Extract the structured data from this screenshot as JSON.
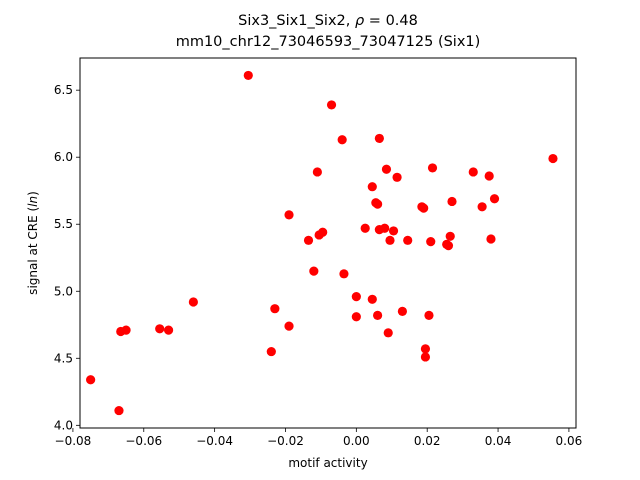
{
  "chart_data": {
    "type": "scatter",
    "title_prefix": "Six3_Six1_Six2, ",
    "title_rho_symbol": "ρ",
    "title_rho_value": " = 0.48",
    "subtitle": "mm10_chr12_73046593_73047125 (Six1)",
    "xlabel": "motif activity",
    "ylabel_prefix": "signal at CRE (",
    "ylabel_italic": "ln",
    "ylabel_suffix": ")",
    "xlim": [
      -0.078,
      0.062
    ],
    "ylim": [
      3.98,
      6.74
    ],
    "xticks": [
      -0.08,
      -0.06,
      -0.04,
      -0.02,
      0.0,
      0.02,
      0.04,
      0.06
    ],
    "xtick_labels": [
      "−0.08",
      "−0.06",
      "−0.04",
      "−0.02",
      "0.00",
      "0.02",
      "0.04",
      "0.06"
    ],
    "yticks": [
      4.0,
      4.5,
      5.0,
      5.5,
      6.0,
      6.5
    ],
    "ytick_labels": [
      "4.0",
      "4.5",
      "5.0",
      "5.5",
      "6.0",
      "6.5"
    ],
    "grid": false,
    "marker_color": "#ff0000",
    "points": [
      [
        -0.075,
        4.34
      ],
      [
        -0.067,
        4.11
      ],
      [
        -0.0665,
        4.7
      ],
      [
        -0.065,
        4.71
      ],
      [
        -0.0555,
        4.72
      ],
      [
        -0.053,
        4.71
      ],
      [
        -0.046,
        4.92
      ],
      [
        -0.0305,
        6.61
      ],
      [
        -0.024,
        4.55
      ],
      [
        -0.023,
        4.87
      ],
      [
        -0.019,
        4.74
      ],
      [
        -0.019,
        5.57
      ],
      [
        -0.0135,
        5.38
      ],
      [
        -0.012,
        5.15
      ],
      [
        -0.011,
        5.89
      ],
      [
        -0.0105,
        5.42
      ],
      [
        -0.0095,
        5.44
      ],
      [
        -0.007,
        6.39
      ],
      [
        -0.004,
        6.13
      ],
      [
        -0.0035,
        5.13
      ],
      [
        0.0,
        4.96
      ],
      [
        0.0,
        4.81
      ],
      [
        0.0025,
        5.47
      ],
      [
        0.0045,
        5.78
      ],
      [
        0.0045,
        4.94
      ],
      [
        0.0055,
        5.66
      ],
      [
        0.006,
        5.65
      ],
      [
        0.006,
        4.82
      ],
      [
        0.0065,
        6.14
      ],
      [
        0.0065,
        5.46
      ],
      [
        0.008,
        5.47
      ],
      [
        0.0085,
        5.91
      ],
      [
        0.009,
        4.69
      ],
      [
        0.0095,
        5.38
      ],
      [
        0.0105,
        5.45
      ],
      [
        0.0115,
        5.85
      ],
      [
        0.013,
        4.85
      ],
      [
        0.0145,
        5.38
      ],
      [
        0.0185,
        5.63
      ],
      [
        0.019,
        5.62
      ],
      [
        0.0195,
        4.57
      ],
      [
        0.0195,
        4.51
      ],
      [
        0.0205,
        4.82
      ],
      [
        0.021,
        5.37
      ],
      [
        0.0215,
        5.92
      ],
      [
        0.0255,
        5.35
      ],
      [
        0.026,
        5.34
      ],
      [
        0.0265,
        5.41
      ],
      [
        0.027,
        5.67
      ],
      [
        0.033,
        5.89
      ],
      [
        0.0355,
        5.63
      ],
      [
        0.0375,
        5.86
      ],
      [
        0.038,
        5.39
      ],
      [
        0.039,
        5.69
      ],
      [
        0.0555,
        5.99
      ]
    ]
  }
}
